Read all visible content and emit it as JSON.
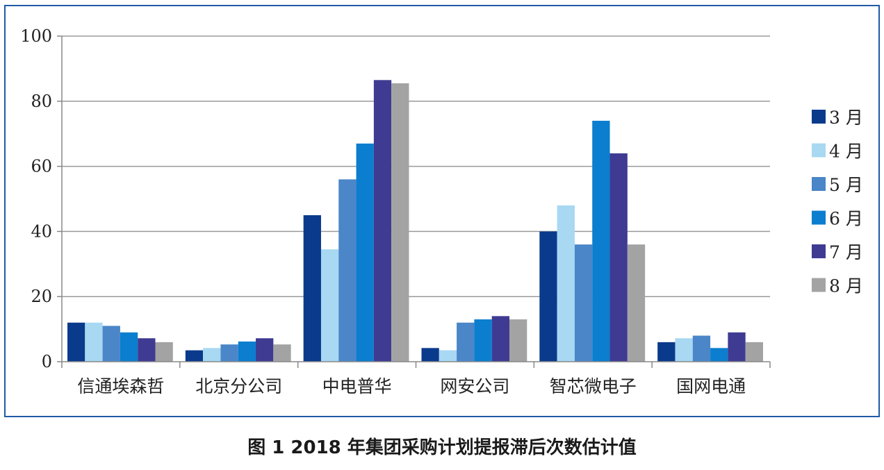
{
  "caption": "图 1  2018 年集团采购计划提报滞后次数估计值",
  "chart_data": {
    "type": "bar",
    "categories": [
      "信通埃森哲",
      "北京分公司",
      "中电普华",
      "网安公司",
      "智芯微电子",
      "国网电通"
    ],
    "series": [
      {
        "name": "3 月",
        "color": "#0a3a8c",
        "values": [
          12,
          3.5,
          45,
          4.2,
          40,
          6
        ]
      },
      {
        "name": "4 月",
        "color": "#a8d8f2",
        "values": [
          12,
          4.2,
          34.5,
          3.5,
          48,
          7.2
        ]
      },
      {
        "name": "5 月",
        "color": "#4a86c8",
        "values": [
          11,
          5.3,
          56,
          12,
          36,
          8
        ]
      },
      {
        "name": "6 月",
        "color": "#0b7ecf",
        "values": [
          9,
          6.2,
          67,
          13,
          74,
          4.2
        ]
      },
      {
        "name": "7 月",
        "color": "#3f3b92",
        "values": [
          7.2,
          7.2,
          86.5,
          14,
          64,
          9
        ]
      },
      {
        "name": "8 月",
        "color": "#a3a3a3",
        "values": [
          6,
          5.3,
          85.5,
          13,
          36,
          6
        ]
      }
    ],
    "yticks": [
      "0",
      "20",
      "40",
      "60",
      "80",
      "100"
    ],
    "ylim": [
      0,
      100
    ],
    "grid": true,
    "legend": "right"
  }
}
